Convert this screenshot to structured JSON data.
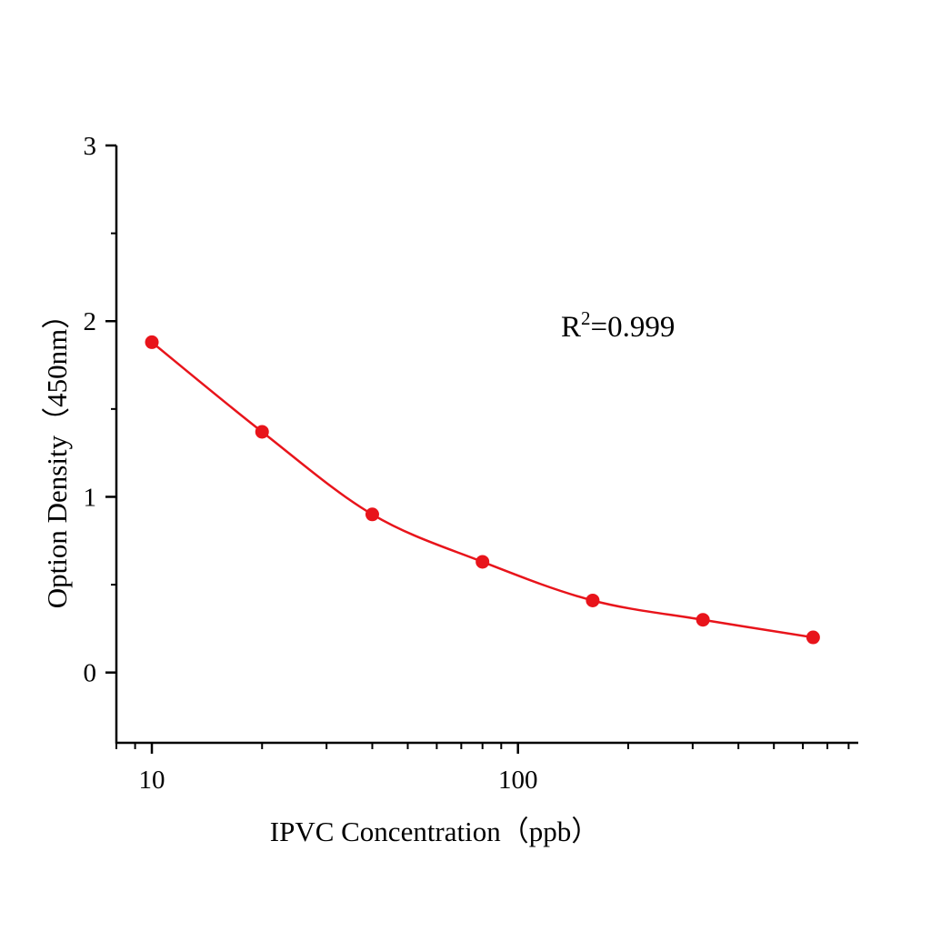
{
  "chart_data": {
    "type": "scatter",
    "title": "",
    "xlabel": "IPVC Concentration（ppb）",
    "ylabel": "Option Density（450nm）",
    "x_scale": "log",
    "xlim": [
      8,
      850
    ],
    "ylim": [
      -0.4,
      3
    ],
    "x_major_ticks": [
      10,
      100
    ],
    "x_tick_labels": [
      "10",
      "100"
    ],
    "x_minor_ticks": [
      8,
      9,
      20,
      30,
      40,
      50,
      60,
      70,
      80,
      90,
      200,
      300,
      400,
      500,
      600,
      700,
      800
    ],
    "y_major_ticks": [
      0,
      1,
      2,
      3
    ],
    "y_tick_labels": [
      "0",
      "1",
      "2",
      "3"
    ],
    "y_minor_ticks": [
      -0.5,
      0.5,
      1.5,
      2.5
    ],
    "grid": false,
    "annotation": {
      "base": "R",
      "sup": "2",
      "rest": "=0.999"
    },
    "series": [
      {
        "x": [
          10,
          20,
          40,
          80,
          160,
          320,
          640
        ],
        "y": [
          1.88,
          1.37,
          0.9,
          0.63,
          0.41,
          0.3,
          0.2
        ],
        "color": "#e8141b",
        "marker": "circle",
        "fit_line": true
      }
    ]
  }
}
